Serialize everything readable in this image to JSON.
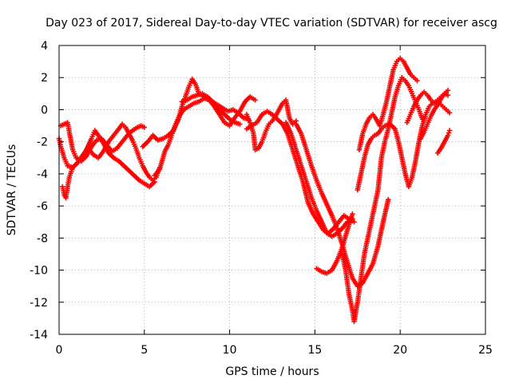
{
  "chart_data": {
    "type": "scatter",
    "title": "Day 023 of 2017, Sidereal Day-to-day VTEC variation (SDTVAR) for receiver ascg",
    "xlabel": "GPS time / hours",
    "ylabel": "SDTVAR / TECUs",
    "xlim": [
      0,
      25
    ],
    "ylim": [
      -14,
      4
    ],
    "xticks": [
      "0",
      "5",
      "10",
      "15",
      "20",
      "25"
    ],
    "yticks": [
      "4",
      "2",
      "0",
      "-2",
      "-4",
      "-6",
      "-8",
      "-10",
      "-12",
      "-14"
    ],
    "grid": true,
    "marker": "plus",
    "color": "#ff0000",
    "series": [
      {
        "points": [
          [
            0.0,
            -1.8
          ],
          [
            0.1,
            -2.3
          ],
          [
            0.3,
            -3.0
          ],
          [
            0.5,
            -3.5
          ],
          [
            0.8,
            -3.6
          ],
          [
            1.1,
            -3.3
          ],
          [
            1.4,
            -2.8
          ],
          [
            1.7,
            -2.4
          ],
          [
            2.0,
            -2.8
          ],
          [
            2.3,
            -3.0
          ],
          [
            2.6,
            -2.6
          ],
          [
            2.9,
            -2.0
          ],
          [
            3.2,
            -1.6
          ],
          [
            3.5,
            -1.2
          ],
          [
            3.7,
            -0.9
          ],
          [
            3.9,
            -1.1
          ],
          [
            4.1,
            -1.5
          ],
          [
            4.3,
            -1.9
          ],
          [
            4.5,
            -2.4
          ],
          [
            4.7,
            -3.0
          ],
          [
            4.9,
            -3.5
          ],
          [
            5.1,
            -3.9
          ],
          [
            5.3,
            -4.2
          ],
          [
            5.5,
            -4.4
          ],
          [
            5.7,
            -4.2
          ],
          [
            5.9,
            -3.6
          ]
        ]
      },
      {
        "points": [
          [
            0.1,
            -1.0
          ],
          [
            0.3,
            -0.9
          ],
          [
            0.5,
            -0.8
          ],
          [
            0.6,
            -1.4
          ],
          [
            0.8,
            -2.5
          ],
          [
            1.0,
            -3.0
          ],
          [
            1.3,
            -3.2
          ],
          [
            1.6,
            -2.9
          ],
          [
            1.9,
            -2.3
          ],
          [
            2.2,
            -1.9
          ],
          [
            2.5,
            -1.8
          ],
          [
            2.8,
            -2.2
          ],
          [
            3.1,
            -2.6
          ],
          [
            3.4,
            -2.4
          ],
          [
            3.7,
            -2.0
          ],
          [
            4.0,
            -1.6
          ],
          [
            4.3,
            -1.3
          ],
          [
            4.6,
            -1.1
          ],
          [
            4.8,
            -1.0
          ],
          [
            5.0,
            -1.1
          ]
        ]
      },
      {
        "points": [
          [
            0.2,
            -4.8
          ],
          [
            0.3,
            -5.3
          ],
          [
            0.4,
            -5.5
          ],
          [
            0.5,
            -4.8
          ],
          [
            0.6,
            -4.2
          ],
          [
            0.8,
            -3.6
          ],
          [
            1.0,
            -3.4
          ],
          [
            1.3,
            -3.0
          ],
          [
            1.6,
            -2.5
          ],
          [
            1.9,
            -1.8
          ],
          [
            2.1,
            -1.3
          ],
          [
            2.3,
            -1.6
          ],
          [
            2.6,
            -2.1
          ],
          [
            2.9,
            -2.7
          ],
          [
            3.2,
            -3.0
          ],
          [
            3.5,
            -3.2
          ],
          [
            3.8,
            -3.5
          ],
          [
            4.1,
            -3.8
          ],
          [
            4.4,
            -4.1
          ],
          [
            4.7,
            -4.4
          ],
          [
            5.0,
            -4.6
          ],
          [
            5.3,
            -4.8
          ],
          [
            5.6,
            -4.5
          ]
        ]
      },
      {
        "points": [
          [
            4.9,
            -2.3
          ],
          [
            5.2,
            -2.0
          ],
          [
            5.5,
            -1.6
          ],
          [
            5.8,
            -1.9
          ],
          [
            6.1,
            -1.8
          ],
          [
            6.4,
            -1.6
          ],
          [
            6.7,
            -1.3
          ],
          [
            7.0,
            -0.6
          ],
          [
            7.2,
            0.2
          ],
          [
            7.4,
            0.8
          ],
          [
            7.6,
            1.4
          ],
          [
            7.8,
            1.9
          ],
          [
            8.0,
            1.6
          ],
          [
            8.2,
            1.0
          ],
          [
            8.5,
            0.8
          ],
          [
            8.8,
            0.7
          ],
          [
            9.1,
            0.3
          ],
          [
            9.4,
            0.0
          ],
          [
            9.7,
            -0.3
          ],
          [
            10.0,
            -0.6
          ],
          [
            10.3,
            -0.8
          ],
          [
            10.6,
            -0.9
          ]
        ]
      },
      {
        "points": [
          [
            5.6,
            -4.1
          ],
          [
            5.9,
            -3.7
          ],
          [
            6.2,
            -2.6
          ],
          [
            6.4,
            -2.2
          ],
          [
            6.6,
            -1.6
          ],
          [
            6.8,
            -1.0
          ],
          [
            7.0,
            -0.5
          ],
          [
            7.3,
            0.0
          ],
          [
            7.6,
            0.2
          ],
          [
            7.9,
            0.4
          ],
          [
            8.2,
            0.5
          ],
          [
            8.5,
            0.7
          ],
          [
            8.8,
            0.6
          ],
          [
            9.1,
            0.2
          ],
          [
            9.4,
            -0.3
          ],
          [
            9.7,
            -0.8
          ],
          [
            10.0,
            -1.0
          ],
          [
            10.3,
            -0.5
          ],
          [
            10.6,
            -0.1
          ],
          [
            10.9,
            0.5
          ],
          [
            11.2,
            0.8
          ],
          [
            11.5,
            0.6
          ]
        ]
      },
      {
        "points": [
          [
            7.2,
            0.5
          ],
          [
            7.5,
            0.6
          ],
          [
            7.8,
            0.8
          ],
          [
            8.1,
            0.9
          ],
          [
            8.4,
            1.0
          ],
          [
            8.7,
            0.8
          ],
          [
            9.0,
            0.5
          ],
          [
            9.3,
            0.3
          ],
          [
            9.6,
            0.1
          ],
          [
            9.9,
            -0.1
          ],
          [
            10.2,
            0.0
          ],
          [
            10.5,
            -0.2
          ],
          [
            10.8,
            -0.5
          ],
          [
            11.1,
            -0.6
          ]
        ]
      },
      {
        "points": [
          [
            11.0,
            -0.3
          ],
          [
            11.2,
            -0.8
          ],
          [
            11.4,
            -1.5
          ],
          [
            11.5,
            -2.5
          ],
          [
            11.7,
            -2.4
          ],
          [
            11.9,
            -2.0
          ],
          [
            12.1,
            -1.4
          ],
          [
            12.3,
            -0.9
          ],
          [
            12.5,
            -0.7
          ],
          [
            12.7,
            -0.4
          ],
          [
            12.9,
            0.0
          ],
          [
            13.1,
            0.4
          ],
          [
            13.3,
            0.6
          ],
          [
            13.5,
            -0.5
          ],
          [
            13.7,
            -0.9
          ],
          [
            13.9,
            -0.7
          ]
        ]
      },
      {
        "points": [
          [
            11.0,
            -1.2
          ],
          [
            11.3,
            -1.0
          ],
          [
            11.6,
            -0.8
          ],
          [
            11.9,
            -0.3
          ],
          [
            12.2,
            -0.1
          ],
          [
            12.5,
            -0.3
          ],
          [
            12.8,
            -0.6
          ],
          [
            13.1,
            -0.9
          ],
          [
            13.4,
            -1.5
          ],
          [
            13.7,
            -2.5
          ],
          [
            14.0,
            -3.5
          ],
          [
            14.3,
            -4.5
          ],
          [
            14.6,
            -5.8
          ],
          [
            14.9,
            -6.5
          ],
          [
            15.2,
            -7.0
          ],
          [
            15.5,
            -7.5
          ],
          [
            15.8,
            -7.7
          ],
          [
            16.1,
            -7.4
          ],
          [
            16.4,
            -7.0
          ],
          [
            16.7,
            -6.6
          ],
          [
            17.0,
            -6.8
          ],
          [
            17.3,
            -7.0
          ]
        ]
      },
      {
        "points": [
          [
            13.3,
            -0.8
          ],
          [
            13.6,
            -1.5
          ],
          [
            13.9,
            -2.5
          ],
          [
            14.2,
            -3.5
          ],
          [
            14.5,
            -4.5
          ],
          [
            14.8,
            -5.5
          ],
          [
            15.1,
            -6.3
          ],
          [
            15.4,
            -7.0
          ],
          [
            15.7,
            -7.7
          ],
          [
            16.0,
            -7.9
          ],
          [
            16.3,
            -7.7
          ],
          [
            16.6,
            -7.4
          ],
          [
            16.9,
            -7.0
          ],
          [
            17.2,
            -6.8
          ]
        ]
      },
      {
        "points": [
          [
            13.9,
            -0.9
          ],
          [
            14.2,
            -1.5
          ],
          [
            14.5,
            -2.5
          ],
          [
            14.8,
            -3.5
          ],
          [
            15.1,
            -4.4
          ],
          [
            15.4,
            -5.2
          ],
          [
            15.7,
            -5.9
          ],
          [
            16.0,
            -6.6
          ],
          [
            16.3,
            -7.4
          ],
          [
            16.6,
            -8.4
          ],
          [
            16.9,
            -9.5
          ],
          [
            17.2,
            -10.5
          ],
          [
            17.5,
            -11.0
          ],
          [
            17.8,
            -10.8
          ],
          [
            18.1,
            -10.2
          ],
          [
            18.4,
            -9.6
          ],
          [
            18.7,
            -8.5
          ],
          [
            19.0,
            -7.0
          ],
          [
            19.3,
            -5.6
          ]
        ]
      },
      {
        "points": [
          [
            15.1,
            -9.9
          ],
          [
            15.4,
            -10.1
          ],
          [
            15.7,
            -10.2
          ],
          [
            16.0,
            -10.0
          ],
          [
            16.3,
            -9.4
          ],
          [
            16.6,
            -8.6
          ],
          [
            16.9,
            -7.5
          ],
          [
            17.2,
            -6.5
          ]
        ]
      },
      {
        "points": [
          [
            16.6,
            -9.0
          ],
          [
            16.8,
            -10.0
          ],
          [
            17.0,
            -11.5
          ],
          [
            17.2,
            -12.5
          ],
          [
            17.3,
            -13.2
          ],
          [
            17.5,
            -12.0
          ],
          [
            17.7,
            -10.5
          ],
          [
            17.9,
            -9.0
          ],
          [
            18.1,
            -8.0
          ],
          [
            18.3,
            -7.0
          ],
          [
            18.5,
            -6.0
          ],
          [
            18.7,
            -5.0
          ],
          [
            18.9,
            -3.0
          ],
          [
            19.1,
            -2.0
          ],
          [
            19.3,
            -1.2
          ],
          [
            19.5,
            -0.2
          ],
          [
            19.7,
            0.8
          ],
          [
            19.9,
            1.5
          ],
          [
            20.1,
            2.0
          ],
          [
            20.3,
            1.8
          ],
          [
            20.5,
            1.5
          ],
          [
            20.7,
            1.0
          ],
          [
            20.9,
            0.5
          ],
          [
            21.1,
            0.0
          ],
          [
            21.3,
            -0.6
          ]
        ]
      },
      {
        "points": [
          [
            17.6,
            -2.5
          ],
          [
            17.8,
            -1.5
          ],
          [
            18.0,
            -0.9
          ],
          [
            18.2,
            -0.5
          ],
          [
            18.4,
            -0.3
          ],
          [
            18.6,
            -0.6
          ],
          [
            18.8,
            -1.0
          ],
          [
            19.0,
            -0.3
          ],
          [
            19.2,
            0.5
          ],
          [
            19.4,
            1.5
          ],
          [
            19.6,
            2.5
          ],
          [
            19.8,
            3.0
          ],
          [
            20.0,
            3.2
          ],
          [
            20.2,
            3.0
          ],
          [
            20.4,
            2.6
          ],
          [
            20.6,
            2.2
          ],
          [
            20.8,
            2.0
          ],
          [
            21.0,
            1.8
          ]
        ]
      },
      {
        "points": [
          [
            17.5,
            -5.0
          ],
          [
            17.7,
            -4.0
          ],
          [
            17.9,
            -3.0
          ],
          [
            18.1,
            -2.2
          ],
          [
            18.3,
            -1.8
          ],
          [
            18.5,
            -1.6
          ],
          [
            18.7,
            -1.5
          ],
          [
            18.9,
            -1.2
          ],
          [
            19.1,
            -1.0
          ],
          [
            19.4,
            -0.9
          ],
          [
            19.7,
            -1.2
          ],
          [
            19.9,
            -2.0
          ],
          [
            20.1,
            -3.0
          ],
          [
            20.3,
            -4.0
          ],
          [
            20.5,
            -4.8
          ],
          [
            20.7,
            -4.2
          ],
          [
            20.9,
            -3.2
          ],
          [
            21.1,
            -2.0
          ],
          [
            21.3,
            -1.0
          ],
          [
            21.5,
            -0.3
          ],
          [
            21.7,
            0.2
          ],
          [
            21.9,
            0.4
          ],
          [
            22.1,
            0.5
          ],
          [
            22.3,
            0.4
          ],
          [
            22.5,
            0.2
          ],
          [
            22.7,
            0.0
          ],
          [
            22.9,
            -0.2
          ]
        ]
      },
      {
        "points": [
          [
            20.4,
            -0.8
          ],
          [
            20.6,
            -0.3
          ],
          [
            20.8,
            0.2
          ],
          [
            21.0,
            0.6
          ],
          [
            21.2,
            0.9
          ],
          [
            21.4,
            1.1
          ],
          [
            21.6,
            0.9
          ],
          [
            21.8,
            0.6
          ],
          [
            22.0,
            0.4
          ],
          [
            22.2,
            0.6
          ],
          [
            22.4,
            0.8
          ],
          [
            22.6,
            1.0
          ],
          [
            22.8,
            1.2
          ]
        ]
      },
      {
        "points": [
          [
            21.2,
            -1.8
          ],
          [
            21.4,
            -1.4
          ],
          [
            21.6,
            -0.9
          ],
          [
            21.8,
            -0.4
          ],
          [
            22.0,
            0.0
          ],
          [
            22.2,
            0.3
          ],
          [
            22.4,
            0.7
          ],
          [
            22.6,
            1.0
          ],
          [
            22.8,
            0.9
          ]
        ]
      },
      {
        "points": [
          [
            22.2,
            -2.7
          ],
          [
            22.4,
            -2.4
          ],
          [
            22.6,
            -2.0
          ],
          [
            22.8,
            -1.6
          ],
          [
            22.9,
            -1.3
          ]
        ]
      }
    ]
  }
}
